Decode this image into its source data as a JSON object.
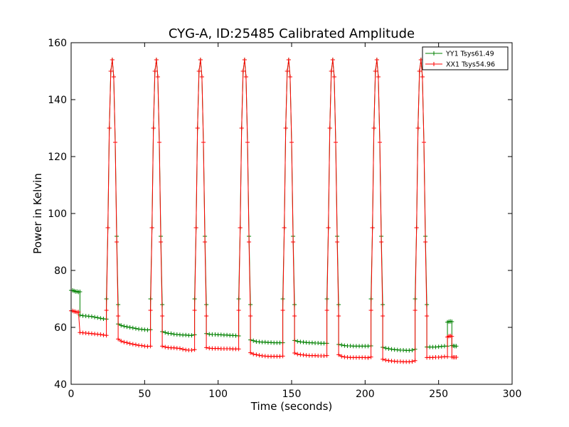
{
  "chart_data": {
    "type": "line",
    "title": "CYG-A, ID:25485 Calibrated Amplitude",
    "xlabel": "Time (seconds)",
    "ylabel": "Power in Kelvin",
    "xlim": [
      0,
      300
    ],
    "ylim": [
      40,
      160
    ],
    "xticks": [
      0,
      50,
      100,
      150,
      200,
      250,
      300
    ],
    "yticks": [
      40,
      60,
      80,
      100,
      120,
      140,
      160
    ],
    "grid": false,
    "legend_position": "top-right",
    "peak_centers": [
      28,
      58,
      88,
      118,
      148,
      178,
      208,
      238
    ],
    "series": [
      {
        "name": "YY1 Tsys61.49",
        "color": "#008000",
        "marker": "+",
        "segments": [
          [
            [
              0,
              73
            ],
            [
              1,
              73
            ],
            [
              2,
              72.8
            ],
            [
              3,
              72.6
            ],
            [
              4,
              72.6
            ],
            [
              5,
              72.4
            ],
            [
              6,
              72.5
            ]
          ],
          [
            [
              6,
              64.3
            ],
            [
              8,
              64.1
            ],
            [
              10,
              64
            ],
            [
              12,
              63.9
            ],
            [
              14,
              63.8
            ],
            [
              16,
              63.6
            ],
            [
              18,
              63.4
            ],
            [
              20,
              63.2
            ],
            [
              22,
              63
            ],
            [
              24,
              62.9
            ]
          ],
          [
            [
              32,
              61.2
            ],
            [
              34,
              60.7
            ],
            [
              36,
              60.4
            ],
            [
              38,
              60.2
            ],
            [
              40,
              60
            ],
            [
              42,
              59.8
            ],
            [
              44,
              59.6
            ],
            [
              46,
              59.4
            ],
            [
              48,
              59.3
            ],
            [
              50,
              59.2
            ],
            [
              52,
              59.1
            ],
            [
              54,
              59.2
            ]
          ],
          [
            [
              62,
              58.5
            ],
            [
              64,
              58.2
            ],
            [
              66,
              57.9
            ],
            [
              68,
              57.8
            ],
            [
              70,
              57.6
            ],
            [
              72,
              57.5
            ],
            [
              74,
              57.4
            ],
            [
              76,
              57.3
            ],
            [
              78,
              57.3
            ],
            [
              80,
              57.2
            ],
            [
              82,
              57.2
            ],
            [
              84,
              57.4
            ]
          ],
          [
            [
              92,
              57.8
            ],
            [
              94,
              57.6
            ],
            [
              96,
              57.5
            ],
            [
              98,
              57.5
            ],
            [
              100,
              57.4
            ],
            [
              102,
              57.4
            ],
            [
              104,
              57.3
            ],
            [
              106,
              57.3
            ],
            [
              108,
              57.2
            ],
            [
              110,
              57.2
            ],
            [
              112,
              57.1
            ],
            [
              114,
              57
            ]
          ],
          [
            [
              122,
              55.6
            ],
            [
              124,
              55.3
            ],
            [
              126,
              55
            ],
            [
              128,
              54.9
            ],
            [
              130,
              54.8
            ],
            [
              132,
              54.8
            ],
            [
              134,
              54.7
            ],
            [
              136,
              54.7
            ],
            [
              138,
              54.6
            ],
            [
              140,
              54.6
            ],
            [
              142,
              54.6
            ],
            [
              144,
              54.6
            ]
          ],
          [
            [
              152,
              55.4
            ],
            [
              154,
              55.1
            ],
            [
              156,
              54.9
            ],
            [
              158,
              54.8
            ],
            [
              160,
              54.7
            ],
            [
              162,
              54.6
            ],
            [
              164,
              54.6
            ],
            [
              166,
              54.5
            ],
            [
              168,
              54.5
            ],
            [
              170,
              54.4
            ],
            [
              172,
              54.4
            ],
            [
              174,
              54.4
            ]
          ],
          [
            [
              182,
              54
            ],
            [
              184,
              53.8
            ],
            [
              186,
              53.6
            ],
            [
              188,
              53.5
            ],
            [
              190,
              53.5
            ],
            [
              192,
              53.4
            ],
            [
              194,
              53.4
            ],
            [
              196,
              53.4
            ],
            [
              198,
              53.4
            ],
            [
              200,
              53.4
            ],
            [
              202,
              53.4
            ],
            [
              204,
              53.5
            ]
          ],
          [
            [
              212,
              53
            ],
            [
              214,
              52.7
            ],
            [
              216,
              52.5
            ],
            [
              218,
              52.3
            ],
            [
              220,
              52.2
            ],
            [
              222,
              52.1
            ],
            [
              224,
              52
            ],
            [
              226,
              52
            ],
            [
              228,
              51.9
            ],
            [
              230,
              51.9
            ],
            [
              232,
              52
            ],
            [
              234,
              52.3
            ]
          ],
          [
            [
              242,
              53.1
            ],
            [
              244,
              53.1
            ],
            [
              246,
              53.1
            ],
            [
              248,
              53.1
            ],
            [
              250,
              53.2
            ],
            [
              252,
              53.3
            ],
            [
              254,
              53.4
            ],
            [
              256,
              53.4
            ]
          ],
          [
            [
              256,
              61.8
            ],
            [
              257,
              62
            ],
            [
              258,
              62.1
            ],
            [
              259,
              62
            ]
          ],
          [
            [
              259,
              53.6
            ],
            [
              260,
              53.5
            ],
            [
              261,
              53.4
            ],
            [
              262,
              53.4
            ]
          ]
        ]
      },
      {
        "name": "XX1 Tsys54.96",
        "color": "#ff0000",
        "marker": "+",
        "segments": [
          [
            [
              0,
              65.8
            ],
            [
              1,
              65.8
            ],
            [
              2,
              65.6
            ],
            [
              3,
              65.5
            ],
            [
              4,
              65.3
            ],
            [
              5,
              65.4
            ]
          ],
          [
            [
              6,
              58.2
            ],
            [
              8,
              58.1
            ],
            [
              10,
              58
            ],
            [
              12,
              57.9
            ],
            [
              14,
              57.8
            ],
            [
              16,
              57.7
            ],
            [
              18,
              57.6
            ],
            [
              20,
              57.5
            ],
            [
              22,
              57.3
            ],
            [
              24,
              57.2
            ]
          ],
          [
            [
              32,
              55.9
            ],
            [
              34,
              55.2
            ],
            [
              36,
              54.8
            ],
            [
              38,
              54.6
            ],
            [
              40,
              54.3
            ],
            [
              42,
              54.1
            ],
            [
              44,
              53.9
            ],
            [
              46,
              53.7
            ],
            [
              48,
              53.6
            ],
            [
              50,
              53.4
            ],
            [
              52,
              53.3
            ],
            [
              54,
              53.4
            ]
          ],
          [
            [
              62,
              53.4
            ],
            [
              64,
              53.1
            ],
            [
              66,
              52.9
            ],
            [
              68,
              52.8
            ],
            [
              70,
              52.8
            ],
            [
              72,
              52.7
            ],
            [
              74,
              52.6
            ],
            [
              76,
              52.3
            ],
            [
              78,
              52.1
            ],
            [
              80,
              52
            ],
            [
              82,
              52
            ],
            [
              84,
              52.2
            ]
          ],
          [
            [
              92,
              52.9
            ],
            [
              94,
              52.7
            ],
            [
              96,
              52.6
            ],
            [
              98,
              52.6
            ],
            [
              100,
              52.6
            ],
            [
              102,
              52.5
            ],
            [
              104,
              52.5
            ],
            [
              106,
              52.5
            ],
            [
              108,
              52.5
            ],
            [
              110,
              52.4
            ],
            [
              112,
              52.4
            ],
            [
              114,
              52.4
            ]
          ],
          [
            [
              122,
              51.1
            ],
            [
              124,
              50.6
            ],
            [
              126,
              50.4
            ],
            [
              128,
              50.2
            ],
            [
              130,
              50
            ],
            [
              132,
              49.9
            ],
            [
              134,
              49.8
            ],
            [
              136,
              49.8
            ],
            [
              138,
              49.8
            ],
            [
              140,
              49.8
            ],
            [
              142,
              49.8
            ],
            [
              144,
              49.9
            ]
          ],
          [
            [
              152,
              51
            ],
            [
              154,
              50.6
            ],
            [
              156,
              50.4
            ],
            [
              158,
              50.3
            ],
            [
              160,
              50.2
            ],
            [
              162,
              50.1
            ],
            [
              164,
              50.1
            ],
            [
              166,
              50.1
            ],
            [
              168,
              50
            ],
            [
              170,
              50
            ],
            [
              172,
              50
            ],
            [
              174,
              50.1
            ]
          ],
          [
            [
              182,
              50.4
            ],
            [
              184,
              49.8
            ],
            [
              186,
              49.6
            ],
            [
              188,
              49.5
            ],
            [
              190,
              49.4
            ],
            [
              192,
              49.4
            ],
            [
              194,
              49.4
            ],
            [
              196,
              49.4
            ],
            [
              198,
              49.4
            ],
            [
              200,
              49.4
            ],
            [
              202,
              49.3
            ],
            [
              204,
              49.6
            ]
          ],
          [
            [
              212,
              48.8
            ],
            [
              214,
              48.5
            ],
            [
              216,
              48.3
            ],
            [
              218,
              48.2
            ],
            [
              220,
              48.1
            ],
            [
              222,
              48
            ],
            [
              224,
              48
            ],
            [
              226,
              47.9
            ],
            [
              228,
              47.9
            ],
            [
              230,
              47.9
            ],
            [
              232,
              48
            ],
            [
              234,
              48.3
            ]
          ],
          [
            [
              242,
              49.4
            ],
            [
              244,
              49.4
            ],
            [
              246,
              49.4
            ],
            [
              248,
              49.5
            ],
            [
              250,
              49.5
            ],
            [
              252,
              49.6
            ],
            [
              254,
              49.7
            ],
            [
              256,
              49.7
            ]
          ],
          [
            [
              256,
              56.6
            ],
            [
              257,
              56.9
            ],
            [
              258,
              57
            ],
            [
              259,
              56.8
            ]
          ],
          [
            [
              259,
              49.6
            ],
            [
              260,
              49.5
            ],
            [
              261,
              49.5
            ],
            [
              262,
              49.5
            ]
          ]
        ]
      }
    ],
    "peak_shapes": {
      "YY1 Tsys61.49": {
        "offsets": [
          -4,
          -3,
          -2,
          -1,
          0,
          1,
          2,
          3,
          4
        ],
        "values": [
          70,
          95,
          130,
          150,
          154,
          148,
          125,
          92,
          68
        ]
      },
      "XX1 Tsys54.96": {
        "offsets": [
          -4,
          -3,
          -2,
          -1,
          0,
          1,
          2,
          3,
          4
        ],
        "values": [
          66,
          95,
          130,
          150,
          154,
          148,
          125,
          90,
          64
        ]
      }
    }
  }
}
